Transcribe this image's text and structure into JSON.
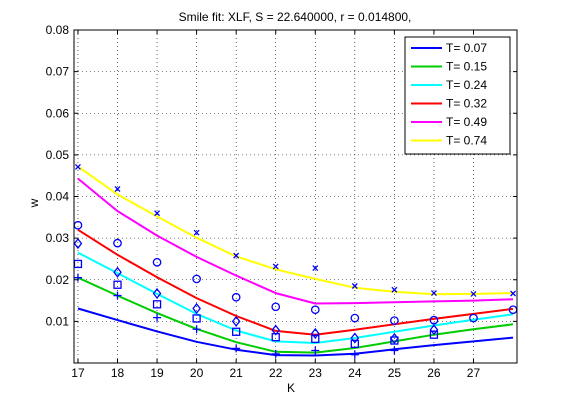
{
  "chart_data": {
    "type": "line",
    "title": "Smile fit: XLF, S = 22.640000, r = 0.014800,",
    "xlabel": "K",
    "ylabel": "w",
    "xlim": [
      16.9,
      28.1
    ],
    "ylim": [
      0.0,
      0.08
    ],
    "xticks": [
      17,
      18,
      19,
      20,
      21,
      22,
      23,
      24,
      25,
      26,
      27
    ],
    "yticks": [
      0.01,
      0.02,
      0.03,
      0.04,
      0.05,
      0.06,
      0.07,
      0.08
    ],
    "grid": true,
    "legend_position": "top-right",
    "legend_entries": [
      "T= 0.07",
      "T= 0.15",
      "T= 0.24",
      "T= 0.32",
      "T= 0.49",
      "T= 0.74"
    ],
    "series": [
      {
        "name": "T= 0.07",
        "color": "#0000ff",
        "fit": {
          "x": [
            17,
            18,
            19,
            20,
            21,
            22,
            23,
            24,
            25,
            26,
            27,
            28
          ],
          "y": [
            0.0131,
            0.0103,
            0.0076,
            0.0051,
            0.0032,
            0.0019,
            0.0018,
            0.0022,
            0.0033,
            0.0043,
            0.0052,
            0.0061
          ]
        },
        "market": {
          "marker": "plus",
          "x": [
            17,
            18,
            19,
            20,
            21,
            22,
            23,
            24,
            25
          ],
          "y": [
            0.0205,
            0.0162,
            0.0109,
            0.0081,
            0.0035,
            0.0022,
            0.003,
            0.002,
            0.003
          ]
        }
      },
      {
        "name": "T= 0.15",
        "color": "#00cc00",
        "fit": {
          "x": [
            17,
            18,
            19,
            20,
            21,
            22,
            23,
            24,
            25,
            26,
            27,
            28
          ],
          "y": [
            0.0205,
            0.0162,
            0.012,
            0.0082,
            0.005,
            0.0027,
            0.0025,
            0.0036,
            0.0052,
            0.0068,
            0.0081,
            0.0093
          ]
        },
        "market": {
          "marker": "square",
          "x": [
            17,
            18,
            19,
            20,
            21,
            22,
            23,
            24,
            25,
            26
          ],
          "y": [
            0.0238,
            0.0188,
            0.0141,
            0.0107,
            0.0075,
            0.0062,
            0.0058,
            0.0046,
            0.0054,
            0.0068
          ]
        }
      },
      {
        "name": "T= 0.24",
        "color": "#00ffff",
        "fit": {
          "x": [
            17,
            18,
            19,
            20,
            21,
            22,
            23,
            24,
            25,
            26,
            27,
            28
          ],
          "y": [
            0.0265,
            0.0216,
            0.0166,
            0.0118,
            0.0078,
            0.0052,
            0.0048,
            0.006,
            0.0075,
            0.009,
            0.0104,
            0.0117
          ]
        },
        "market": {
          "marker": "diamond",
          "x": [
            17,
            18,
            19,
            20,
            21,
            22,
            23,
            24,
            25,
            26
          ],
          "y": [
            0.0287,
            0.0218,
            0.0167,
            0.0131,
            0.01,
            0.0079,
            0.0071,
            0.006,
            0.0059,
            0.008
          ]
        }
      },
      {
        "name": "T= 0.32",
        "color": "#ff0000",
        "fit": {
          "x": [
            17,
            18,
            19,
            20,
            21,
            22,
            23,
            24,
            25,
            26,
            27,
            28
          ],
          "y": [
            0.032,
            0.026,
            0.0206,
            0.0156,
            0.0113,
            0.0077,
            0.0068,
            0.008,
            0.0093,
            0.0106,
            0.0118,
            0.013
          ]
        },
        "market": {
          "marker": "circle",
          "x": [
            17,
            18,
            19,
            20,
            21,
            22,
            23,
            24,
            25,
            26,
            27,
            28
          ],
          "y": [
            0.0331,
            0.0288,
            0.0242,
            0.0202,
            0.0158,
            0.0135,
            0.0128,
            0.0108,
            0.0102,
            0.0103,
            0.0108,
            0.0128
          ]
        }
      },
      {
        "name": "T= 0.49",
        "color": "#ff00ff",
        "fit": {
          "x": [
            17,
            18,
            19,
            20,
            21,
            22,
            23,
            24,
            25,
            26,
            27,
            28
          ],
          "y": [
            0.0443,
            0.0365,
            0.0306,
            0.0255,
            0.021,
            0.0168,
            0.0143,
            0.0144,
            0.0146,
            0.0148,
            0.015,
            0.0153
          ]
        },
        "market": {
          "marker": "none",
          "x": [],
          "y": []
        }
      },
      {
        "name": "T= 0.74",
        "color": "#ffff00",
        "fit": {
          "x": [
            17,
            18,
            19,
            20,
            21,
            22,
            23,
            24,
            25,
            26,
            27,
            28
          ],
          "y": [
            0.0472,
            0.0405,
            0.0352,
            0.0301,
            0.0256,
            0.0225,
            0.0202,
            0.0181,
            0.0171,
            0.0165,
            0.0166,
            0.0168
          ]
        },
        "market": {
          "marker": "x",
          "x": [
            17,
            18,
            19,
            20,
            21,
            22,
            23,
            24,
            25,
            26,
            27,
            28
          ],
          "y": [
            0.0471,
            0.0418,
            0.036,
            0.0313,
            0.0258,
            0.0232,
            0.0228,
            0.0185,
            0.0176,
            0.0168,
            0.0166,
            0.0167
          ]
        }
      }
    ]
  }
}
